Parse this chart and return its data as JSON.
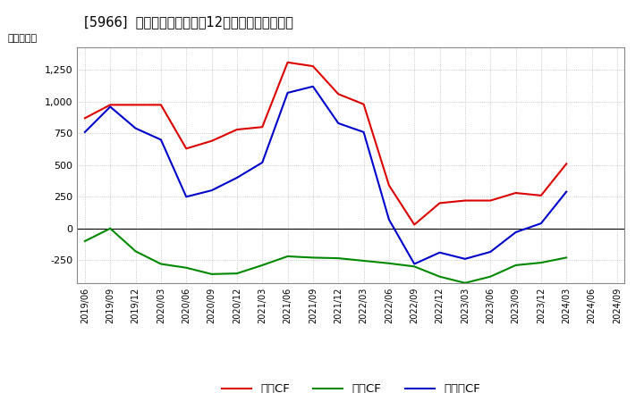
{
  "title": "[5966]  キャッシュフローの12か月移動合計の推移",
  "ylabel": "（百万円）",
  "ylim": [
    -430,
    1430
  ],
  "yticks": [
    -250,
    0,
    250,
    500,
    750,
    1000,
    1250
  ],
  "background_color": "#ffffff",
  "plot_bg_color": "#ffffff",
  "grid_color": "#aaaaaa",
  "dates": [
    "2019/06",
    "2019/09",
    "2019/12",
    "2020/03",
    "2020/06",
    "2020/09",
    "2020/12",
    "2021/03",
    "2021/06",
    "2021/09",
    "2021/12",
    "2022/03",
    "2022/06",
    "2022/09",
    "2022/12",
    "2023/03",
    "2023/06",
    "2023/09",
    "2023/12",
    "2024/03",
    "2024/06",
    "2024/09"
  ],
  "operating_cf": [
    870,
    975,
    975,
    975,
    630,
    690,
    780,
    800,
    1310,
    1280,
    1060,
    980,
    340,
    30,
    200,
    220,
    220,
    280,
    260,
    510,
    null,
    null
  ],
  "investing_cf": [
    -100,
    0,
    -180,
    -280,
    -310,
    -360,
    -355,
    -290,
    -220,
    -230,
    -235,
    -255,
    -275,
    -300,
    -380,
    -430,
    -380,
    -290,
    -270,
    -230,
    null,
    null
  ],
  "free_cf": [
    760,
    960,
    790,
    700,
    250,
    300,
    400,
    520,
    1070,
    1120,
    830,
    760,
    70,
    -280,
    -190,
    -240,
    -185,
    -30,
    40,
    290,
    null,
    null
  ],
  "operating_color": "#dd0000",
  "investing_color": "#008800",
  "free_color": "#0000cc",
  "legend_labels": [
    "営業CF",
    "投資CF",
    "フリーCF"
  ]
}
